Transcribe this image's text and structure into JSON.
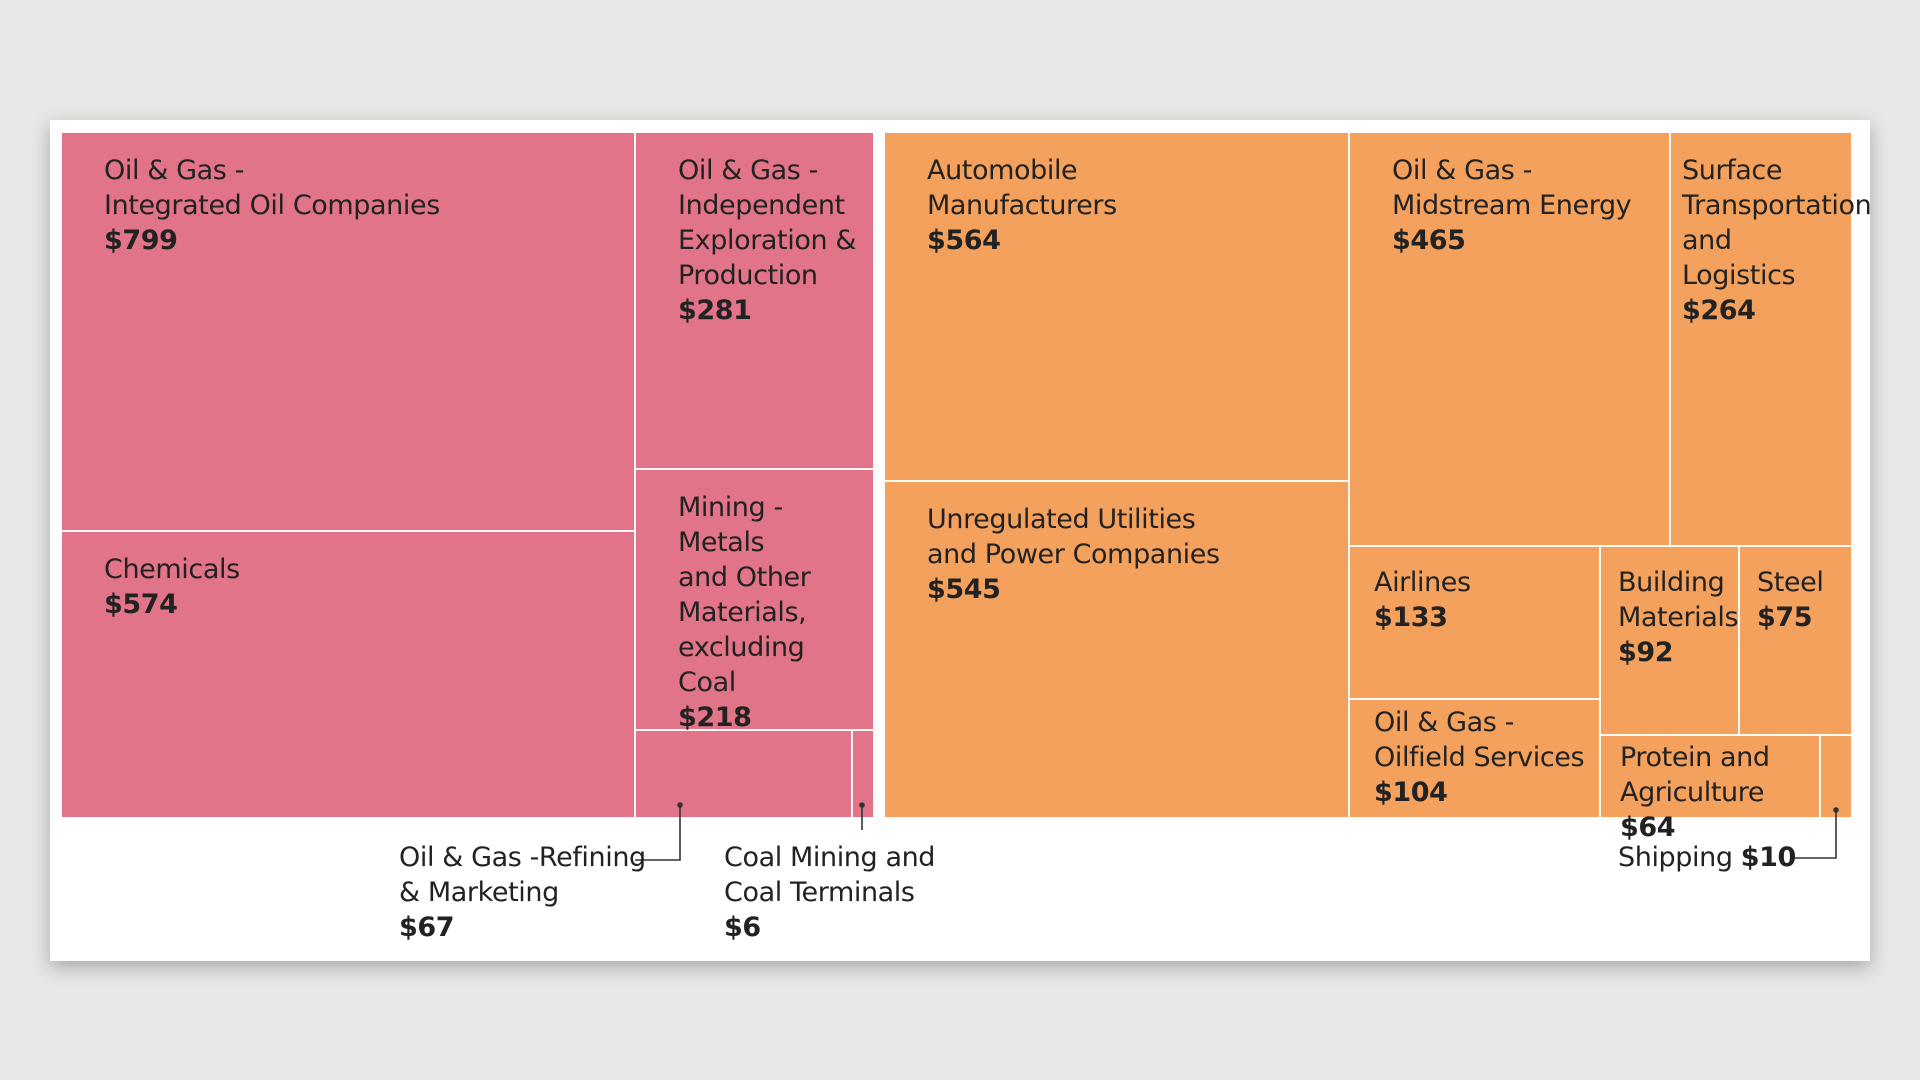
{
  "chart_data": {
    "type": "treemap",
    "title": "",
    "groups": [
      {
        "color": "#e17488",
        "items": [
          {
            "name": "Oil & Gas -\nIntegrated Oil Companies",
            "value": 799,
            "label": "$799"
          },
          {
            "name": "Chemicals",
            "value": 574,
            "label": "$574"
          },
          {
            "name": "Oil & Gas -\nIndependent\nExploration &\nProduction",
            "value": 281,
            "label": "$281"
          },
          {
            "name": "Mining - Metals\nand Other\nMaterials,\nexcluding Coal",
            "value": 218,
            "label": "$218"
          },
          {
            "name": "Oil & Gas -Refining\n& Marketing",
            "value": 67,
            "label": "$67"
          },
          {
            "name": "Coal Mining and\nCoal Terminals",
            "value": 6,
            "label": "$6"
          }
        ]
      },
      {
        "color": "#f3a15d",
        "items": [
          {
            "name": "Automobile\nManufacturers",
            "value": 564,
            "label": "$564"
          },
          {
            "name": "Unregulated Utilities\nand Power Companies",
            "value": 545,
            "label": "$545"
          },
          {
            "name": "Oil & Gas -\nMidstream Energy",
            "value": 465,
            "label": "$465"
          },
          {
            "name": "Surface\nTransportation\nand Logistics",
            "value": 264,
            "label": "$264"
          },
          {
            "name": "Airlines",
            "value": 133,
            "label": "$133"
          },
          {
            "name": "Oil & Gas -\nOilfield Services",
            "value": 104,
            "label": "$104"
          },
          {
            "name": "Building\nMaterials",
            "value": 92,
            "label": "$92"
          },
          {
            "name": "Steel",
            "value": 75,
            "label": "$75"
          },
          {
            "name": "Protein and\nAgriculture",
            "value": 64,
            "label": "$64"
          },
          {
            "name": "Shipping",
            "value": 10,
            "label": "$10"
          }
        ]
      }
    ]
  }
}
